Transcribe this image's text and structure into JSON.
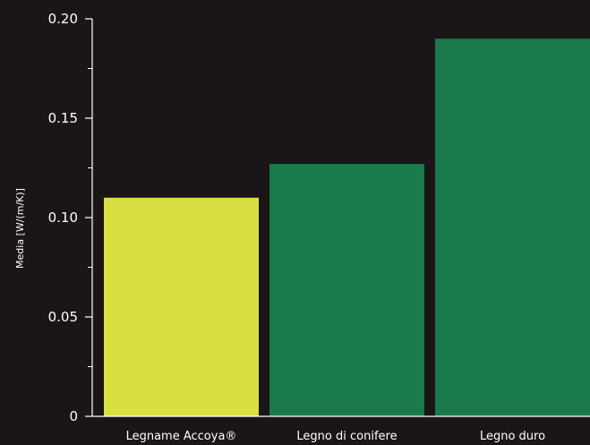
{
  "chart_data": {
    "type": "bar",
    "title": "",
    "xlabel": "",
    "ylabel": "Media   [W/(m/K)]",
    "categories": [
      "Legname Accoya®",
      "Legno di conifere",
      "Legno  duro"
    ],
    "values": [
      0.11,
      0.127,
      0.19
    ],
    "bar_colors": [
      "#d7e040",
      "#1b7a4a",
      "#1b7a4a"
    ],
    "ylim": [
      0,
      0.2
    ],
    "yticks": [
      0,
      0.05,
      0.1,
      0.15,
      0.2
    ],
    "ytick_labels": [
      "0",
      "0.05",
      "0.10",
      "0.15",
      "0.20"
    ],
    "minor_ticks": true,
    "grid": false,
    "legend": "none"
  },
  "colors": {
    "background": "#1a1617",
    "axis": "#ffffff",
    "text": "#ffffff"
  }
}
